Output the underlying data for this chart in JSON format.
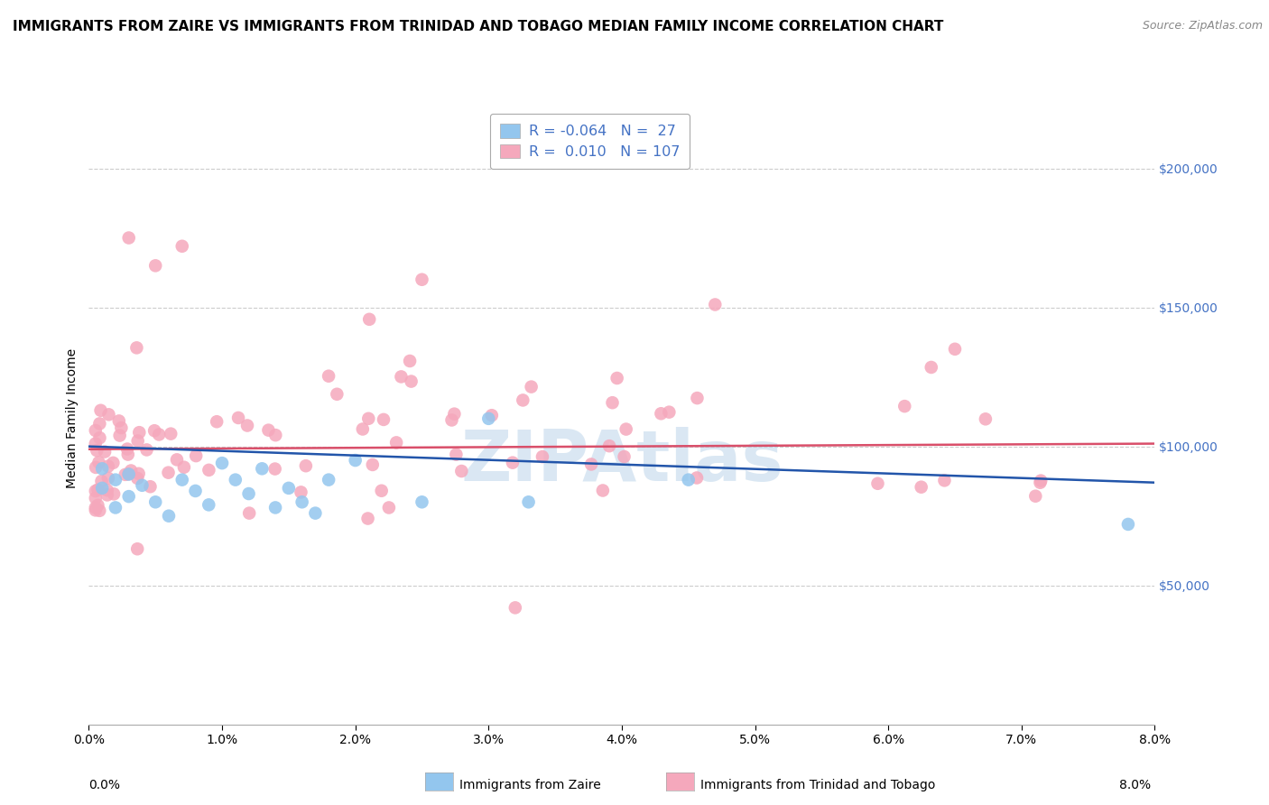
{
  "title": "IMMIGRANTS FROM ZAIRE VS IMMIGRANTS FROM TRINIDAD AND TOBAGO MEDIAN FAMILY INCOME CORRELATION CHART",
  "source": "Source: ZipAtlas.com",
  "ylabel": "Median Family Income",
  "x_min": 0.0,
  "x_max": 0.08,
  "y_min": 0,
  "y_max": 220000,
  "y_ticks": [
    50000,
    100000,
    150000,
    200000
  ],
  "x_ticks": [
    0.0,
    0.01,
    0.02,
    0.03,
    0.04,
    0.05,
    0.06,
    0.07,
    0.08
  ],
  "R_zaire": -0.064,
  "N_zaire": 27,
  "R_trinidad": 0.01,
  "N_trinidad": 107,
  "color_zaire": "#93C6EE",
  "color_trinidad": "#F5A8BC",
  "line_color_zaire": "#2255AA",
  "line_color_trinidad": "#D94F6A",
  "legend_label_zaire": "Immigrants from Zaire",
  "legend_label_trinidad": "Immigrants from Trinidad and Tobago",
  "watermark": "ZIPAtlas",
  "background_color": "#FFFFFF",
  "grid_color": "#CCCCCC",
  "title_fontsize": 11,
  "axis_label_fontsize": 10,
  "tick_fontsize": 10,
  "right_tick_color": "#4472C4"
}
